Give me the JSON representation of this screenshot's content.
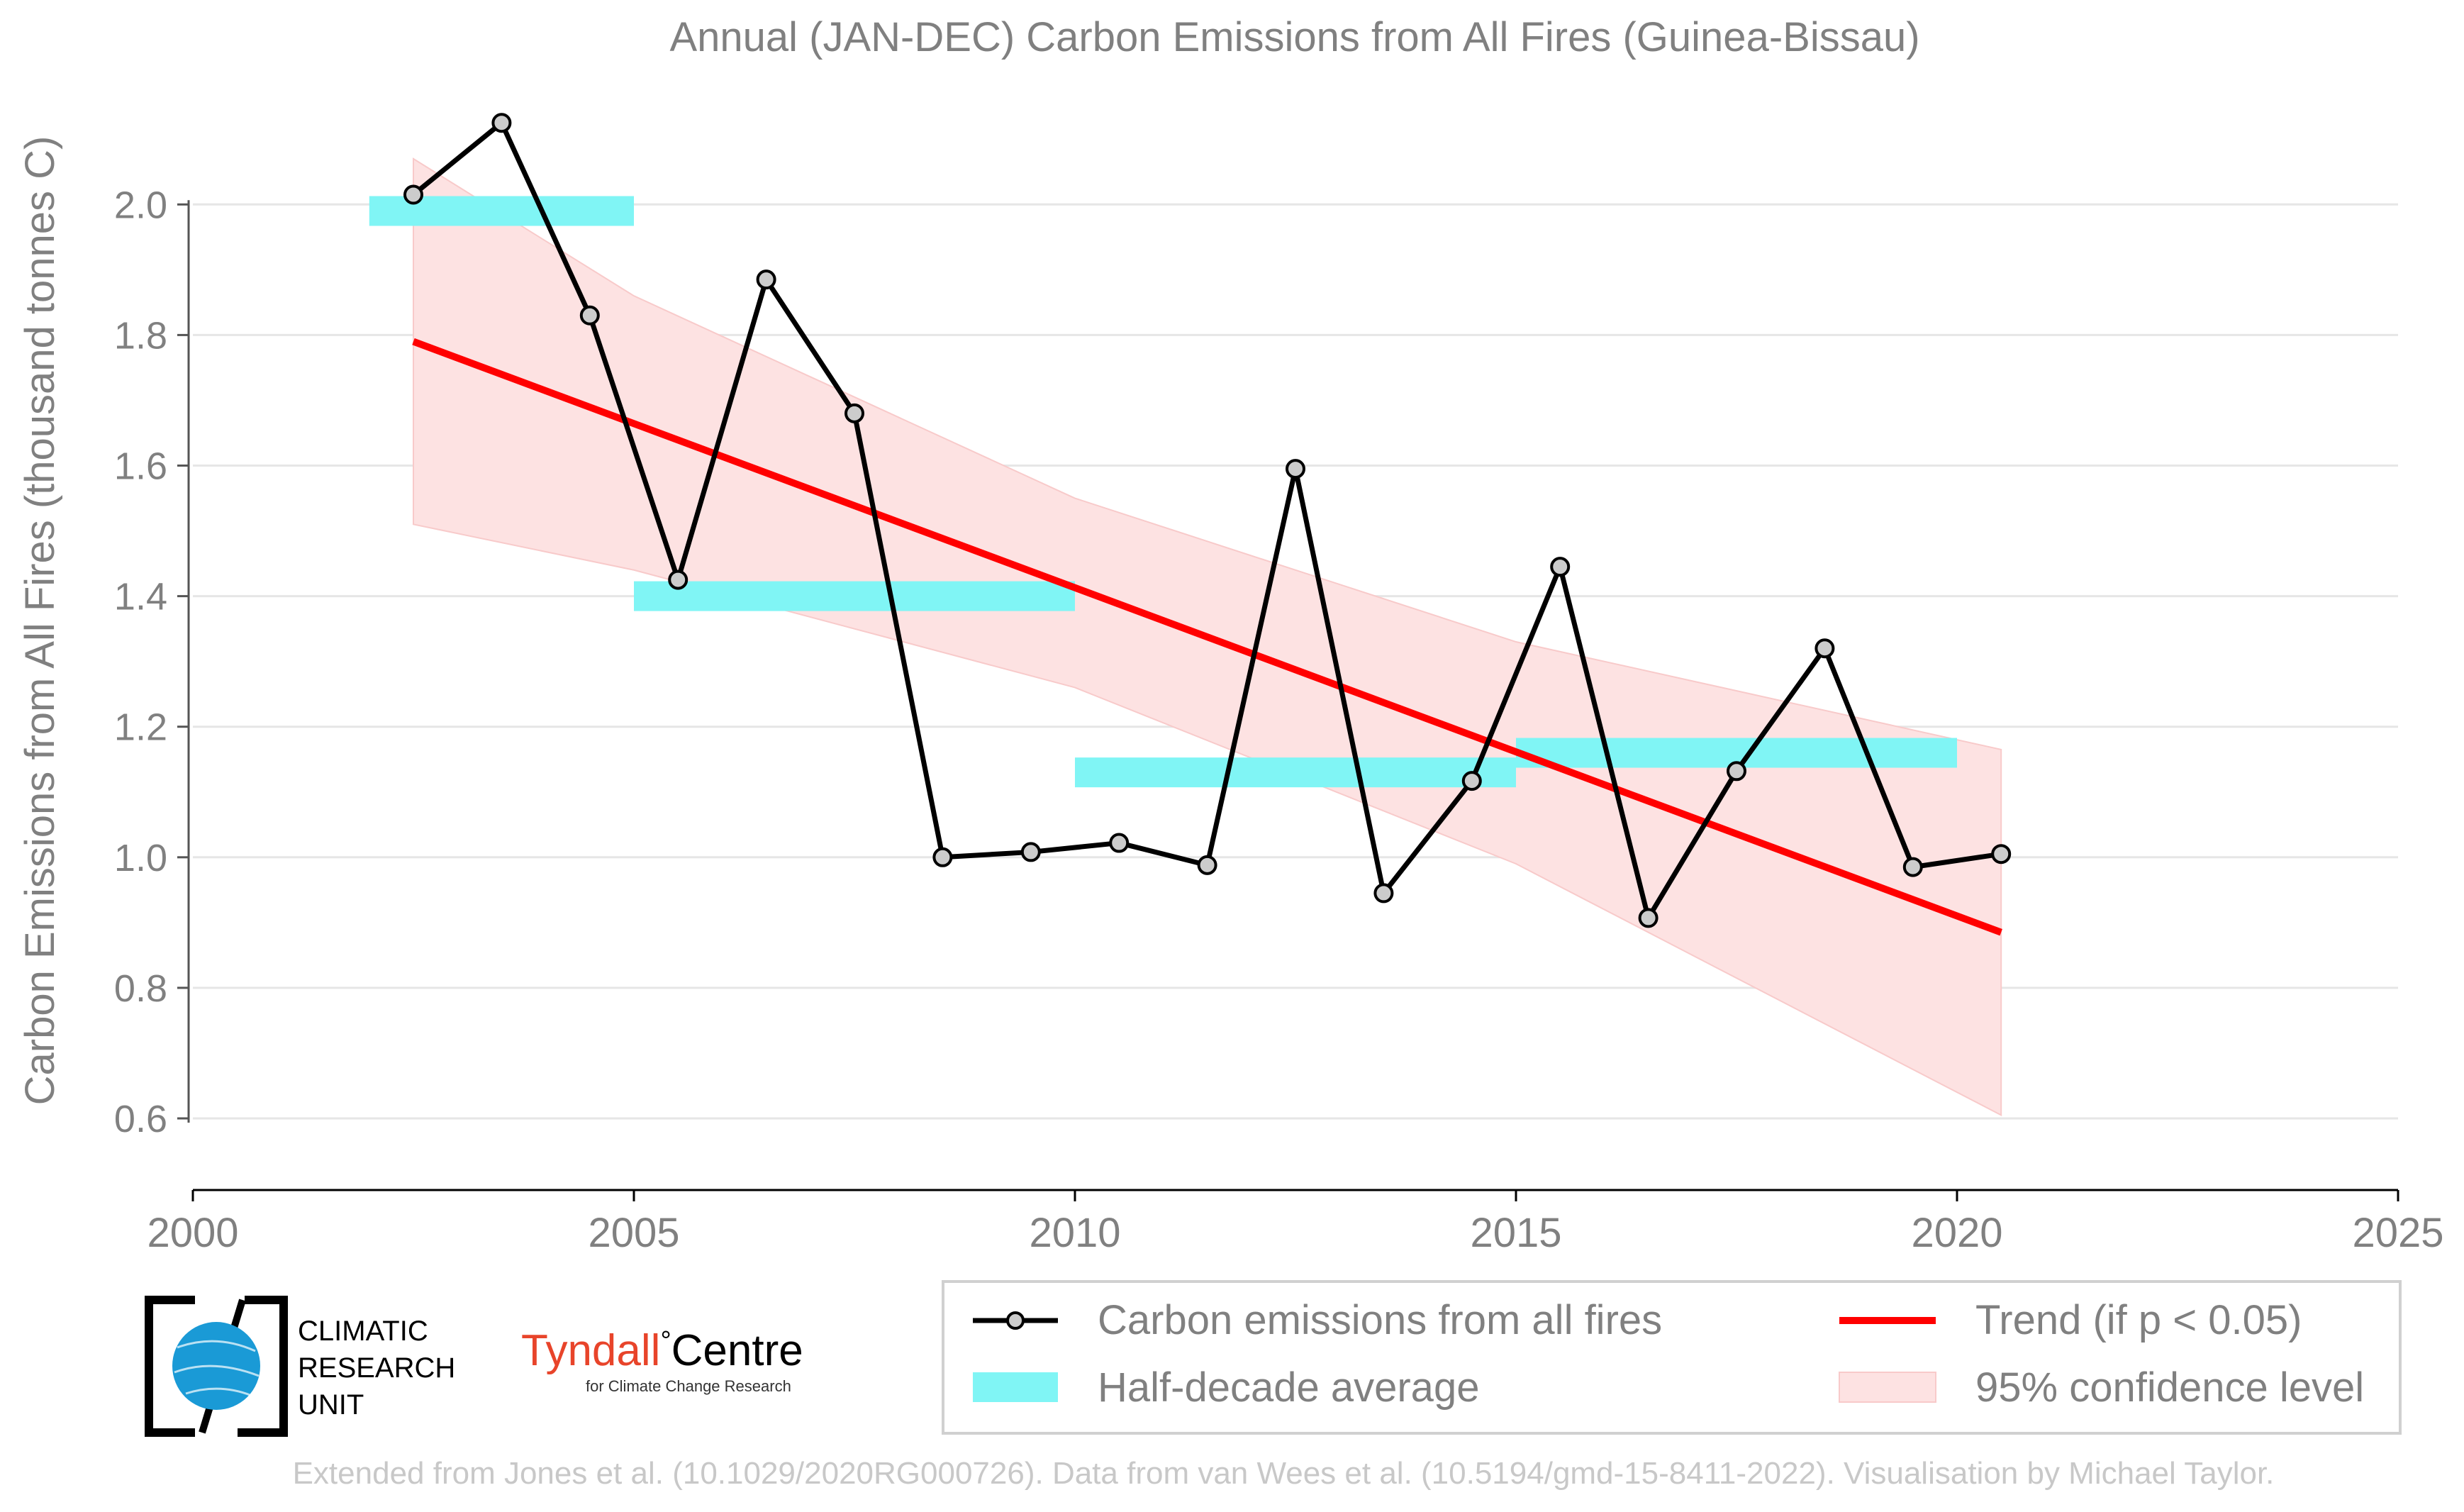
{
  "chart_data": {
    "type": "line",
    "title": "Annual (JAN-DEC) Carbon Emissions from All Fires (Guinea-Bissau)",
    "ylabel": "Carbon Emissions from All Fires (thousand tonnes C)",
    "xlabel": "",
    "xlim": [
      2000,
      2025
    ],
    "ylim": [
      0.5,
      2.2
    ],
    "x_ticks": [
      "2000",
      "2005",
      "2010",
      "2015",
      "2020",
      "2025"
    ],
    "y_ticks": [
      "0.6",
      "0.8",
      "1.0",
      "1.2",
      "1.4",
      "1.6",
      "1.8",
      "2.0"
    ],
    "grid": "horizontal",
    "legend_position": "bottom-right",
    "series": [
      {
        "name": "Carbon emissions from all fires",
        "color": "#000000",
        "x": [
          2002.5,
          2003.5,
          2004.5,
          2005.5,
          2006.5,
          2007.5,
          2008.5,
          2009.5,
          2010.5,
          2011.5,
          2012.5,
          2013.5,
          2014.5,
          2015.5,
          2016.5,
          2017.5,
          2018.5,
          2019.5,
          2020.5
        ],
        "values": [
          2.015,
          2.125,
          1.83,
          1.425,
          1.885,
          1.68,
          1.0,
          1.008,
          1.022,
          0.988,
          1.595,
          0.945,
          1.117,
          1.445,
          0.907,
          1.132,
          1.32,
          0.985,
          1.005
        ]
      },
      {
        "name": "Half-decade average",
        "color": "#80f5f5",
        "segments": [
          {
            "x_start": 2002,
            "x_end": 2005,
            "value": 1.99
          },
          {
            "x_start": 2005,
            "x_end": 2010,
            "value": 1.4
          },
          {
            "x_start": 2010,
            "x_end": 2015,
            "value": 1.13
          },
          {
            "x_start": 2015,
            "x_end": 2020,
            "value": 1.16
          }
        ]
      },
      {
        "name": "Trend (if p < 0.05)",
        "color": "#ff0000",
        "x": [
          2002.5,
          2020.5
        ],
        "values": [
          1.79,
          0.885
        ]
      },
      {
        "name": "95% confidence level",
        "color": "#fde2e2",
        "x": [
          2002.5,
          2005,
          2010,
          2015,
          2020.5
        ],
        "upper": [
          2.07,
          1.86,
          1.55,
          1.33,
          1.165
        ],
        "lower": [
          1.51,
          1.44,
          1.26,
          0.99,
          0.605
        ]
      }
    ]
  },
  "logos": {
    "cru": {
      "line1": "CLIMATIC",
      "line2": "RESEARCH",
      "line3": "UNIT"
    },
    "tyndall": {
      "name_part1": "Tyndall",
      "degree": "°",
      "name_part2": "Centre",
      "tagline": "for Climate Change Research"
    }
  },
  "footer": "Extended from Jones et al. (10.1029/2020RG000726). Data from van Wees et al. (10.5194/gmd-15-8411-2022). Visualisation by Michael Taylor."
}
